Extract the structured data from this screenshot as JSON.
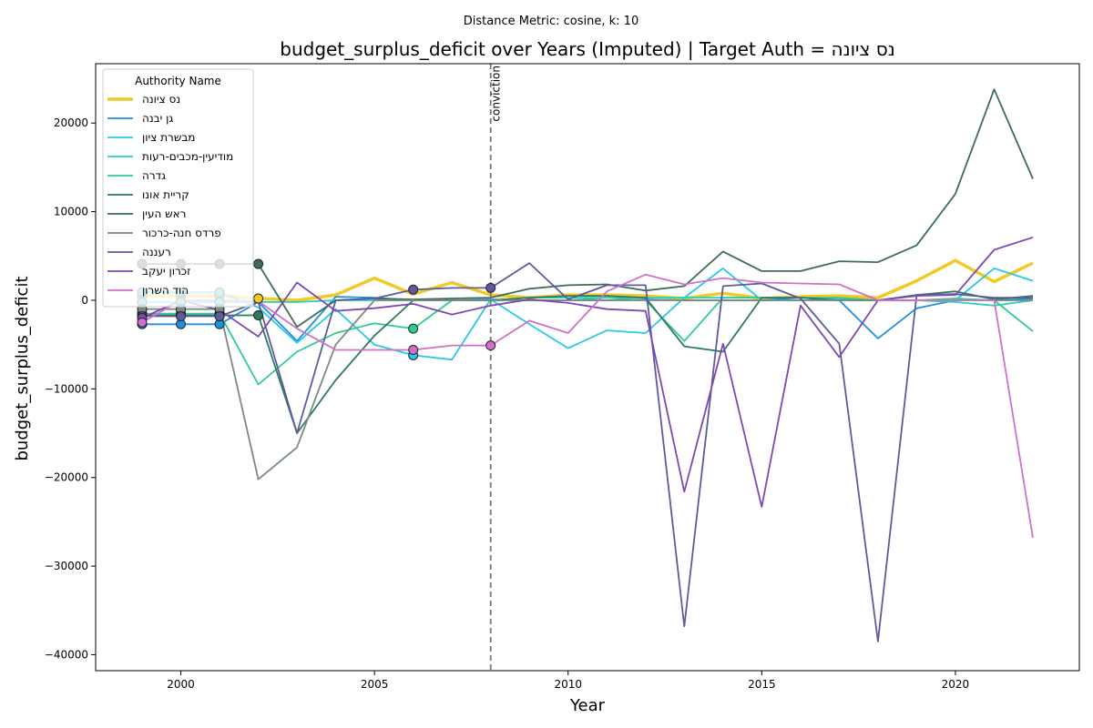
{
  "chart_data": {
    "type": "line",
    "suptitle": "Distance Metric: cosine, k: 10",
    "title": "budget_surplus_deficit over Years (Imputed) | Target Auth = נס ציונה",
    "xlabel": "Year",
    "ylabel": "budget_surplus_deficit",
    "xlim": [
      1997.8,
      2023.2
    ],
    "ylim": [
      -41800,
      26700
    ],
    "xticks": [
      2000,
      2005,
      2010,
      2015,
      2020
    ],
    "yticks": [
      -40000,
      -30000,
      -20000,
      -10000,
      0,
      10000,
      20000
    ],
    "ytick_labels": [
      "−40000",
      "−30000",
      "−20000",
      "−10000",
      "0",
      "10000",
      "20000"
    ],
    "grid": false,
    "legend": {
      "title": "Authority Name",
      "placement": "upper-left"
    },
    "vline": {
      "x": 2008,
      "label": "conviction"
    },
    "x": [
      1999,
      2000,
      2001,
      2002,
      2003,
      2004,
      2005,
      2006,
      2007,
      2008,
      2009,
      2010,
      2011,
      2012,
      2013,
      2014,
      2015,
      2016,
      2017,
      2018,
      2019,
      2020,
      2021,
      2022
    ],
    "series": [
      {
        "name": "נס ציונה",
        "color": "#f2ca27",
        "width": 3.5,
        "values": [
          500,
          500,
          500,
          200,
          0,
          600,
          2500,
          700,
          2000,
          600,
          300,
          600,
          600,
          500,
          200,
          800,
          200,
          400,
          500,
          300,
          2200,
          4500,
          2100,
          4200
        ],
        "imputed": [
          1999,
          2000,
          2001,
          2002
        ]
      },
      {
        "name": "גן יבנה",
        "color": "#1f8fe0",
        "width": 1.8,
        "values": [
          -2700,
          -2700,
          -2700,
          -200,
          -4600,
          400,
          300,
          0,
          0,
          100,
          0,
          0,
          0,
          100,
          0,
          0,
          0,
          300,
          0,
          -4300,
          -900,
          0,
          0,
          200
        ],
        "imputed": [
          1999,
          2000,
          2001
        ]
      },
      {
        "name": "מבשרת ציון",
        "color": "#27c9ea",
        "width": 1.8,
        "values": [
          900,
          900,
          900,
          -800,
          -4800,
          -1000,
          -5000,
          -6200,
          -6700,
          100,
          -2700,
          -5400,
          -3400,
          -3700,
          300,
          3600,
          0,
          0,
          0,
          0,
          0,
          0,
          3600,
          2200
        ],
        "imputed": [
          1999,
          2000,
          2001,
          2006
        ]
      },
      {
        "name": "מודיעין-מכבים-רעות",
        "color": "#25d1b8",
        "width": 1.8,
        "values": [
          -200,
          -200,
          -200,
          -200,
          -200,
          0,
          0,
          0,
          0,
          0,
          300,
          300,
          300,
          300,
          300,
          300,
          300,
          300,
          200,
          0,
          0,
          -200,
          -600,
          0
        ],
        "imputed": [
          1999,
          2000,
          2001
        ]
      },
      {
        "name": "גדרה",
        "color": "#2ecc8f",
        "width": 1.8,
        "values": [
          -1500,
          -1500,
          -1500,
          -9500,
          -5800,
          -3700,
          -2600,
          -3200,
          0,
          0,
          0,
          0,
          300,
          0,
          -4600,
          300,
          300,
          300,
          300,
          0,
          0,
          200,
          0,
          -3500
        ],
        "imputed": [
          1999,
          2000,
          2001,
          2006
        ]
      },
      {
        "name": "קריית אונו",
        "color": "#2f7a5e",
        "width": 1.8,
        "values": [
          -1700,
          -1700,
          -1700,
          -1700,
          -15000,
          -9000,
          -4000,
          0,
          0,
          0,
          300,
          500,
          500,
          300,
          -5200,
          -5800,
          300,
          300,
          0,
          0,
          600,
          1000,
          100,
          500
        ],
        "imputed": [
          1999,
          2000,
          2001,
          2002
        ]
      },
      {
        "name": "ראש העין",
        "color": "#3e6b5c",
        "width": 1.8,
        "values": [
          4100,
          4100,
          4100,
          4100,
          -3000,
          0,
          200,
          100,
          200,
          300,
          1300,
          1700,
          1800,
          1100,
          1600,
          5500,
          3300,
          3300,
          4400,
          4300,
          6200,
          12000,
          23800,
          13700
        ],
        "imputed": [
          1999,
          2000,
          2001,
          2002
        ]
      },
      {
        "name": "פרדס חנה-כרכור",
        "color": "#7a8a86",
        "width": 1.8,
        "values": [
          -1000,
          -1000,
          -1000,
          -20200,
          -16600,
          -5000,
          0,
          0,
          0,
          0,
          0,
          0,
          0,
          0,
          0,
          0,
          0,
          0,
          0,
          0,
          0,
          0,
          0,
          0
        ],
        "imputed": [
          1999,
          2000,
          2001
        ]
      },
      {
        "name": "רעננה",
        "color": "#5c5c9c",
        "width": 1.8,
        "values": [
          -1800,
          -1800,
          -1800,
          -200,
          -15000,
          0,
          200,
          1200,
          1400,
          1400,
          4200,
          100,
          1700,
          1700,
          -36800,
          1600,
          1900,
          200,
          -4900,
          -38500,
          600,
          700,
          300,
          300
        ],
        "imputed": [
          1999,
          2000,
          2001,
          2006,
          2008
        ]
      },
      {
        "name": "זכרון יעקב",
        "color": "#7e47b3",
        "width": 1.8,
        "values": [
          -2000,
          0,
          -1100,
          -4100,
          2000,
          -1200,
          -900,
          -400,
          -1600,
          -600,
          100,
          -300,
          -1000,
          -1200,
          -21600,
          -4900,
          -23300,
          -600,
          -6400,
          0,
          500,
          600,
          5700,
          7100
        ],
        "imputed": [
          1999
        ]
      },
      {
        "name": "הוד השרון",
        "color": "#d070c8",
        "width": 1.8,
        "values": [
          -2500,
          0,
          0,
          -100,
          -3200,
          -5600,
          -5600,
          -5600,
          -5100,
          -5100,
          -2300,
          -3700,
          1000,
          2900,
          1800,
          2500,
          2000,
          1900,
          1800,
          0,
          0,
          0,
          0,
          -26800
        ],
        "imputed": [
          1999,
          2006,
          2008
        ]
      }
    ]
  }
}
